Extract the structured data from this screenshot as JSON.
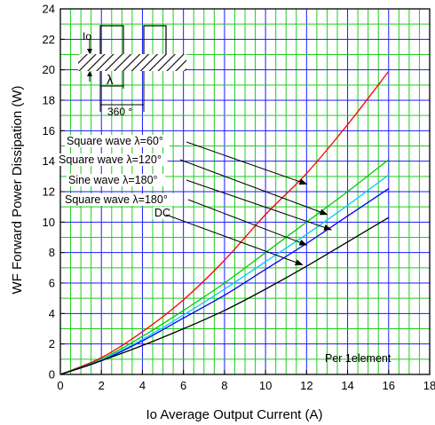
{
  "chart_data": {
    "type": "line",
    "xlabel": "Io   Average Output Current   (A)",
    "ylabel": "WF   Forward Power Dissipation   (W)",
    "xlim": [
      0,
      18
    ],
    "ylim": [
      0,
      24
    ],
    "x_ticks": [
      "0",
      "2",
      "4",
      "6",
      "8",
      "10",
      "12",
      "14",
      "16",
      "18"
    ],
    "y_ticks": [
      "0",
      "2",
      "4",
      "6",
      "8",
      "10",
      "12",
      "14",
      "16",
      "18",
      "20",
      "22",
      "24"
    ],
    "grid": true,
    "x": [
      0,
      2,
      4,
      6,
      8,
      10,
      12,
      14,
      16
    ],
    "series": [
      {
        "name": "Square wave λ=60°",
        "color": "#ff0000",
        "values": [
          0,
          1.1,
          2.8,
          4.9,
          7.5,
          10.5,
          13.2,
          16.4,
          19.9
        ]
      },
      {
        "name": "Square wave λ=120°",
        "color": "#00cc00",
        "values": [
          0,
          1.0,
          2.5,
          4.2,
          6.0,
          8.0,
          10.0,
          12.0,
          14.1
        ]
      },
      {
        "name": "Sine wave λ=180°",
        "color": "#00ccff",
        "values": [
          0,
          0.95,
          2.3,
          3.9,
          5.6,
          7.4,
          9.2,
          11.1,
          13.1
        ]
      },
      {
        "name": "Square wave λ=180°",
        "color": "#0000ff",
        "values": [
          0,
          0.9,
          2.2,
          3.7,
          5.2,
          6.9,
          8.6,
          10.4,
          12.2
        ]
      },
      {
        "name": "DC",
        "color": "#000000",
        "values": [
          0,
          0.9,
          1.9,
          3.0,
          4.2,
          5.6,
          7.1,
          8.7,
          10.3
        ]
      }
    ],
    "annotations": [
      {
        "text": "Square wave λ=60°",
        "target": [
          12.0,
          12.5
        ]
      },
      {
        "text": "Square wave λ=120°",
        "target": [
          13.0,
          10.5
        ]
      },
      {
        "text": "Sine wave λ=180°",
        "target": [
          13.2,
          9.5
        ]
      },
      {
        "text": "Square wave λ=180°",
        "target": [
          12.0,
          8.5
        ]
      },
      {
        "text": "DC",
        "target": [
          11.8,
          7.2
        ]
      }
    ],
    "note": "Per 1element",
    "inset": {
      "io_label": "Io",
      "lambda_label": "λ",
      "period_label": "360 °"
    }
  }
}
